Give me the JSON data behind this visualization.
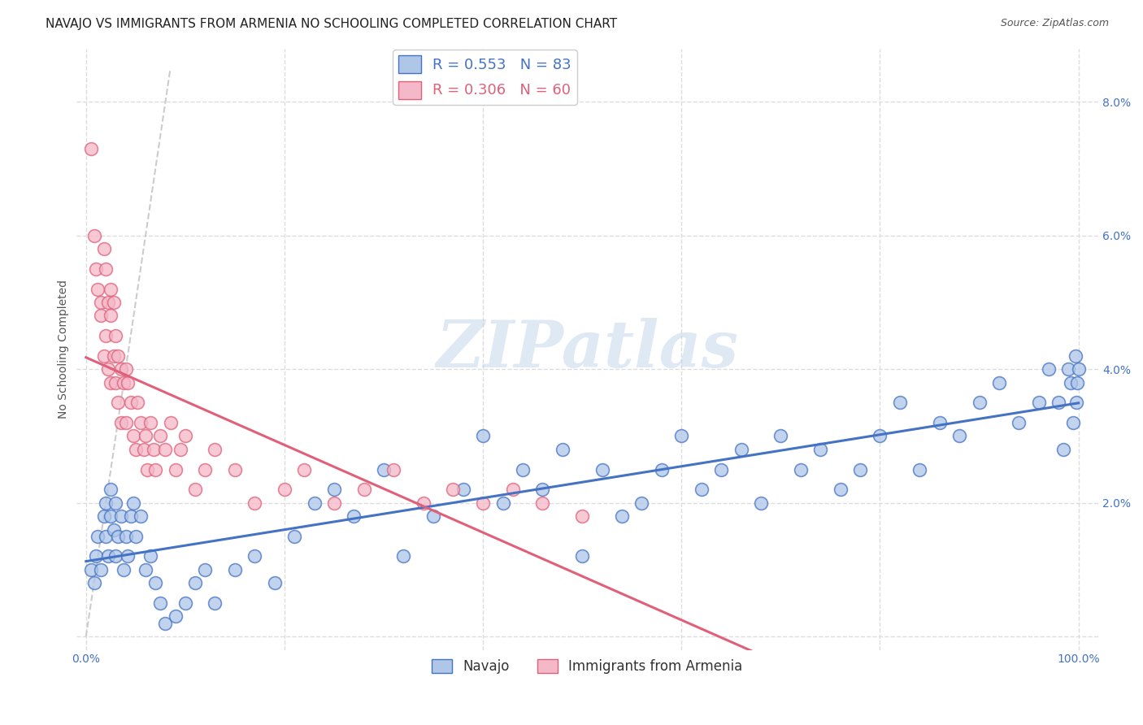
{
  "title": "NAVAJO VS IMMIGRANTS FROM ARMENIA NO SCHOOLING COMPLETED CORRELATION CHART",
  "source": "Source: ZipAtlas.com",
  "ylabel": "No Schooling Completed",
  "xlim": [
    -0.01,
    1.02
  ],
  "ylim": [
    -0.002,
    0.088
  ],
  "xticks": [
    0.0,
    0.2,
    0.4,
    0.6,
    0.8,
    1.0
  ],
  "xticklabels": [
    "0.0%",
    "",
    "",
    "",
    "",
    "100.0%"
  ],
  "yticks": [
    0.0,
    0.02,
    0.04,
    0.06,
    0.08
  ],
  "yticklabels": [
    "",
    "2.0%",
    "4.0%",
    "6.0%",
    "8.0%"
  ],
  "navajo_R": 0.553,
  "navajo_N": 83,
  "armenia_R": 0.306,
  "armenia_N": 60,
  "navajo_color": "#aec6e8",
  "navajo_line_color": "#4472c4",
  "armenia_color": "#f4b8c8",
  "armenia_line_color": "#e0607a",
  "diagonal_color": "#cccccc",
  "background_color": "#ffffff",
  "grid_color": "#dddddd",
  "watermark": "ZIPatlas",
  "navajo_x": [
    0.005,
    0.008,
    0.01,
    0.012,
    0.015,
    0.018,
    0.02,
    0.02,
    0.022,
    0.025,
    0.025,
    0.028,
    0.03,
    0.03,
    0.032,
    0.035,
    0.038,
    0.04,
    0.042,
    0.045,
    0.048,
    0.05,
    0.055,
    0.06,
    0.065,
    0.07,
    0.075,
    0.08,
    0.09,
    0.1,
    0.11,
    0.12,
    0.13,
    0.15,
    0.17,
    0.19,
    0.21,
    0.23,
    0.25,
    0.27,
    0.3,
    0.32,
    0.35,
    0.38,
    0.4,
    0.42,
    0.44,
    0.46,
    0.48,
    0.5,
    0.52,
    0.54,
    0.56,
    0.58,
    0.6,
    0.62,
    0.64,
    0.66,
    0.68,
    0.7,
    0.72,
    0.74,
    0.76,
    0.78,
    0.8,
    0.82,
    0.84,
    0.86,
    0.88,
    0.9,
    0.92,
    0.94,
    0.96,
    0.97,
    0.98,
    0.985,
    0.99,
    0.992,
    0.995,
    0.997,
    0.998,
    0.999,
    1.0
  ],
  "navajo_y": [
    0.01,
    0.008,
    0.012,
    0.015,
    0.01,
    0.018,
    0.015,
    0.02,
    0.012,
    0.018,
    0.022,
    0.016,
    0.012,
    0.02,
    0.015,
    0.018,
    0.01,
    0.015,
    0.012,
    0.018,
    0.02,
    0.015,
    0.018,
    0.01,
    0.012,
    0.008,
    0.005,
    0.002,
    0.003,
    0.005,
    0.008,
    0.01,
    0.005,
    0.01,
    0.012,
    0.008,
    0.015,
    0.02,
    0.022,
    0.018,
    0.025,
    0.012,
    0.018,
    0.022,
    0.03,
    0.02,
    0.025,
    0.022,
    0.028,
    0.012,
    0.025,
    0.018,
    0.02,
    0.025,
    0.03,
    0.022,
    0.025,
    0.028,
    0.02,
    0.03,
    0.025,
    0.028,
    0.022,
    0.025,
    0.03,
    0.035,
    0.025,
    0.032,
    0.03,
    0.035,
    0.038,
    0.032,
    0.035,
    0.04,
    0.035,
    0.028,
    0.04,
    0.038,
    0.032,
    0.042,
    0.035,
    0.038,
    0.04
  ],
  "armenia_x": [
    0.005,
    0.008,
    0.01,
    0.012,
    0.015,
    0.015,
    0.018,
    0.018,
    0.02,
    0.02,
    0.022,
    0.022,
    0.025,
    0.025,
    0.025,
    0.028,
    0.028,
    0.03,
    0.03,
    0.032,
    0.032,
    0.035,
    0.035,
    0.038,
    0.04,
    0.04,
    0.042,
    0.045,
    0.048,
    0.05,
    0.052,
    0.055,
    0.058,
    0.06,
    0.062,
    0.065,
    0.068,
    0.07,
    0.075,
    0.08,
    0.085,
    0.09,
    0.095,
    0.1,
    0.11,
    0.12,
    0.13,
    0.15,
    0.17,
    0.2,
    0.22,
    0.25,
    0.28,
    0.31,
    0.34,
    0.37,
    0.4,
    0.43,
    0.46,
    0.5
  ],
  "armenia_y": [
    0.073,
    0.06,
    0.055,
    0.052,
    0.05,
    0.048,
    0.058,
    0.042,
    0.055,
    0.045,
    0.05,
    0.04,
    0.052,
    0.048,
    0.038,
    0.042,
    0.05,
    0.045,
    0.038,
    0.042,
    0.035,
    0.04,
    0.032,
    0.038,
    0.04,
    0.032,
    0.038,
    0.035,
    0.03,
    0.028,
    0.035,
    0.032,
    0.028,
    0.03,
    0.025,
    0.032,
    0.028,
    0.025,
    0.03,
    0.028,
    0.032,
    0.025,
    0.028,
    0.03,
    0.022,
    0.025,
    0.028,
    0.025,
    0.02,
    0.022,
    0.025,
    0.02,
    0.022,
    0.025,
    0.02,
    0.022,
    0.02,
    0.022,
    0.02,
    0.018
  ],
  "title_fontsize": 11,
  "axis_label_fontsize": 10,
  "tick_fontsize": 10,
  "legend_fontsize": 13
}
